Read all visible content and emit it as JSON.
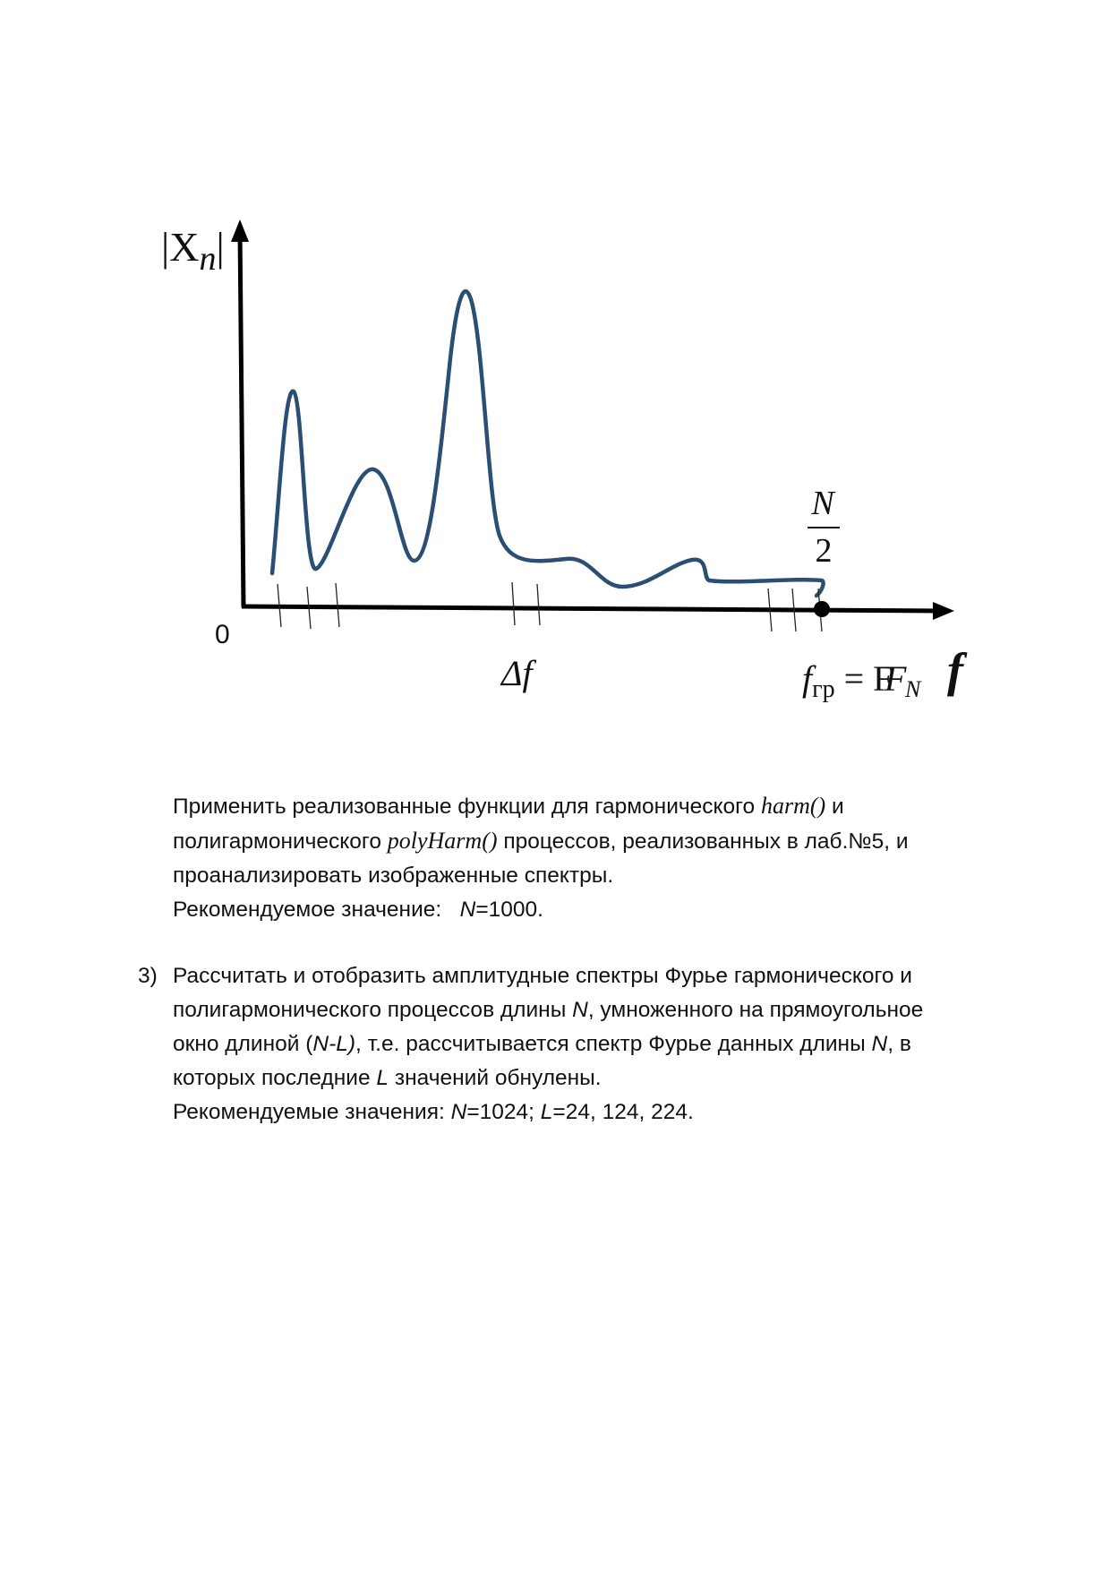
{
  "figure": {
    "y_axis_label": "|X",
    "y_axis_subscript": "n",
    "y_axis_label_close": "|",
    "origin_label": "0",
    "delta_label": "Δf",
    "nyquist_fraction_num": "N",
    "nyquist_fraction_den": "2",
    "boundary_f": "f",
    "boundary_f_sub": "гр",
    "boundary_eq": " = F",
    "boundary_F_sub": "N",
    "x_axis_label": "f",
    "colors": {
      "curve": "#2b4e74",
      "axes": "#000000"
    }
  },
  "para1": {
    "l1_a": "Применить реализованные функции для гармонического ",
    "l1_fn": "harm()",
    "l1_b": " и",
    "l2_a": "полигармонического ",
    "l2_fn": "polyHarm()",
    "l2_b": " процессов, реализованных в лаб.№5, и",
    "l3": "проанализировать изображенные спектры.",
    "l4_a": "Рекомендуемое значение:   ",
    "l4_n": "N",
    "l4_b": "=1000."
  },
  "item3": {
    "number": "3)",
    "l1": "Рассчитать и отобразить амплитудные спектры Фурье гармонического и",
    "l2_a": "полигармонического процессов длины ",
    "l2_n": "N",
    "l2_b": ", умноженного на прямоугольное",
    "l3_a": "окно длиной (",
    "l3_nl": "N-L)",
    "l3_b": ", т.е. рассчитывается спектр Фурье данных длины ",
    "l3_n": "N",
    "l3_c": ", в",
    "l4_a": "которых последние ",
    "l4_l": "L",
    "l4_b": " значений обнулены.",
    "l5_a": "Рекомендуемые значения: ",
    "l5_n": "N",
    "l5_b": "=1024; ",
    "l5_l": "L",
    "l5_c": "=24, 124, 224."
  }
}
